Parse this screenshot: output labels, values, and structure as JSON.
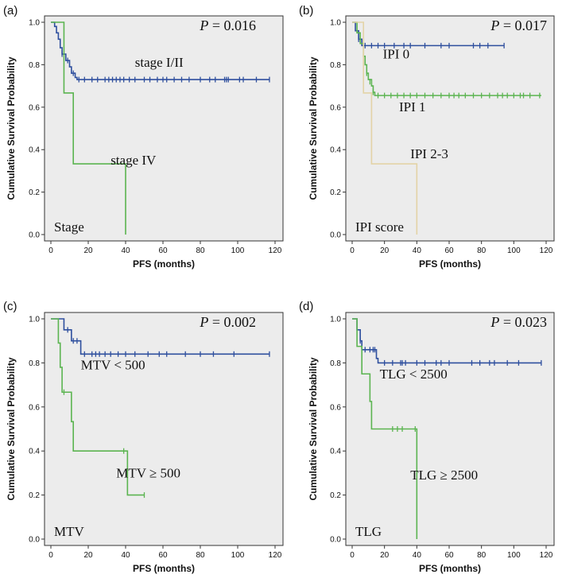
{
  "chart_data": [
    {
      "type": "line",
      "panel_label": "(a)",
      "title": "",
      "p_value_prefix": "P",
      "p_value_text": " = 0.016",
      "group_title": "Stage",
      "xlabel": "PFS (months)",
      "ylabel": "Cumulative Survival Probability",
      "xlim": [
        0,
        120
      ],
      "ylim": [
        0,
        1.0
      ],
      "x_ticks": [
        "0",
        "20",
        "40",
        "60",
        "80",
        "100",
        "120"
      ],
      "y_ticks": [
        "0.0",
        "0.2",
        "0.4",
        "0.6",
        "0.8",
        "1.0"
      ],
      "series": [
        {
          "name": "stage I/II",
          "color": "#2E4F9E",
          "label_at": [
            45,
            0.79
          ],
          "steps": [
            [
              0,
              1.0
            ],
            [
              2,
              0.98
            ],
            [
              3,
              0.95
            ],
            [
              4,
              0.92
            ],
            [
              5,
              0.88
            ],
            [
              6,
              0.85
            ],
            [
              8,
              0.82
            ],
            [
              10,
              0.79
            ],
            [
              11,
              0.76
            ],
            [
              13,
              0.74
            ],
            [
              14,
              0.73
            ],
            [
              117,
              0.73
            ]
          ],
          "censored": [
            [
              6,
              0.85
            ],
            [
              9,
              0.82
            ],
            [
              12,
              0.76
            ],
            [
              15,
              0.73
            ],
            [
              18,
              0.73
            ],
            [
              22,
              0.73
            ],
            [
              25,
              0.73
            ],
            [
              29,
              0.73
            ],
            [
              31,
              0.73
            ],
            [
              33,
              0.73
            ],
            [
              35,
              0.73
            ],
            [
              37,
              0.73
            ],
            [
              39,
              0.73
            ],
            [
              42,
              0.73
            ],
            [
              45,
              0.73
            ],
            [
              50,
              0.73
            ],
            [
              53,
              0.73
            ],
            [
              57,
              0.73
            ],
            [
              60,
              0.73
            ],
            [
              62,
              0.73
            ],
            [
              66,
              0.73
            ],
            [
              70,
              0.73
            ],
            [
              74,
              0.73
            ],
            [
              80,
              0.73
            ],
            [
              85,
              0.73
            ],
            [
              88,
              0.73
            ],
            [
              93,
              0.73
            ],
            [
              94,
              0.73
            ],
            [
              95,
              0.73
            ],
            [
              101,
              0.73
            ],
            [
              103,
              0.73
            ],
            [
              110,
              0.73
            ],
            [
              117,
              0.73
            ]
          ]
        },
        {
          "name": "stage IV",
          "color": "#5BB450",
          "label_at": [
            32,
            0.33
          ],
          "steps": [
            [
              0,
              1.0
            ],
            [
              6,
              1.0
            ],
            [
              7,
              0.667
            ],
            [
              11,
              0.667
            ],
            [
              12,
              0.333
            ],
            [
              40,
              0.333
            ],
            [
              40,
              0.0
            ]
          ],
          "censored": []
        }
      ]
    },
    {
      "type": "line",
      "panel_label": "(b)",
      "title": "",
      "p_value_prefix": "P",
      "p_value_text": " = 0.017",
      "group_title": "IPI score",
      "xlabel": "PFS (months)",
      "ylabel": "Cumulative Survival Probability",
      "xlim": [
        0,
        120
      ],
      "ylim": [
        0,
        1.0
      ],
      "x_ticks": [
        "0",
        "20",
        "40",
        "60",
        "80",
        "100",
        "120"
      ],
      "y_ticks": [
        "0.0",
        "0.2",
        "0.4",
        "0.6",
        "0.8",
        "1.0"
      ],
      "series": [
        {
          "name": "IPI 0",
          "color": "#2E4F9E",
          "label_at": [
            19,
            0.83
          ],
          "steps": [
            [
              0,
              1.0
            ],
            [
              2,
              0.96
            ],
            [
              4,
              0.92
            ],
            [
              6,
              0.89
            ],
            [
              94,
              0.89
            ]
          ],
          "censored": [
            [
              4,
              0.92
            ],
            [
              8,
              0.89
            ],
            [
              12,
              0.89
            ],
            [
              16,
              0.89
            ],
            [
              20,
              0.89
            ],
            [
              26,
              0.89
            ],
            [
              32,
              0.89
            ],
            [
              36,
              0.89
            ],
            [
              45,
              0.89
            ],
            [
              55,
              0.89
            ],
            [
              60,
              0.89
            ],
            [
              75,
              0.89
            ],
            [
              79,
              0.89
            ],
            [
              84,
              0.89
            ],
            [
              94,
              0.89
            ]
          ]
        },
        {
          "name": "IPI 1",
          "color": "#5BB450",
          "label_at": [
            29,
            0.58
          ],
          "steps": [
            [
              0,
              1.0
            ],
            [
              3,
              0.95
            ],
            [
              5,
              0.9
            ],
            [
              7,
              0.84
            ],
            [
              8,
              0.8
            ],
            [
              9,
              0.76
            ],
            [
              10,
              0.73
            ],
            [
              12,
              0.7
            ],
            [
              13,
              0.67
            ],
            [
              14,
              0.655
            ],
            [
              117,
              0.655
            ]
          ],
          "censored": [
            [
              9,
              0.76
            ],
            [
              11,
              0.72
            ],
            [
              13,
              0.67
            ],
            [
              16,
              0.655
            ],
            [
              20,
              0.655
            ],
            [
              24,
              0.655
            ],
            [
              28,
              0.655
            ],
            [
              32,
              0.655
            ],
            [
              36,
              0.655
            ],
            [
              40,
              0.655
            ],
            [
              45,
              0.655
            ],
            [
              50,
              0.655
            ],
            [
              55,
              0.655
            ],
            [
              60,
              0.655
            ],
            [
              63,
              0.655
            ],
            [
              66,
              0.655
            ],
            [
              70,
              0.655
            ],
            [
              75,
              0.655
            ],
            [
              80,
              0.655
            ],
            [
              85,
              0.655
            ],
            [
              90,
              0.655
            ],
            [
              93,
              0.655
            ],
            [
              96,
              0.655
            ],
            [
              100,
              0.655
            ],
            [
              104,
              0.655
            ],
            [
              106,
              0.655
            ],
            [
              110,
              0.655
            ],
            [
              116,
              0.655
            ]
          ]
        },
        {
          "name": "IPI 2-3",
          "color": "#E3D3A6",
          "label_at": [
            36,
            0.36
          ],
          "steps": [
            [
              0,
              1.0
            ],
            [
              6,
              1.0
            ],
            [
              7,
              0.667
            ],
            [
              11,
              0.667
            ],
            [
              12,
              0.333
            ],
            [
              40,
              0.333
            ],
            [
              40,
              0.0
            ]
          ],
          "censored": []
        }
      ]
    },
    {
      "type": "line",
      "panel_label": "(c)",
      "title": "",
      "p_value_prefix": "P",
      "p_value_text": " = 0.002",
      "group_title": "MTV",
      "xlabel": "PFS (months)",
      "ylabel": "Cumulative Survival Probability",
      "xlim": [
        0,
        120
      ],
      "ylim": [
        0,
        1.0
      ],
      "x_ticks": [
        "0",
        "20",
        "40",
        "60",
        "80",
        "100",
        "120"
      ],
      "y_ticks": [
        "0.0",
        "0.2",
        "0.4",
        "0.6",
        "0.8",
        "1.0"
      ],
      "series": [
        {
          "name": "MTV < 500",
          "color": "#2E4F9E",
          "label_at": [
            16,
            0.77
          ],
          "steps": [
            [
              0,
              1.0
            ],
            [
              6,
              1.0
            ],
            [
              7,
              0.95
            ],
            [
              11,
              0.9
            ],
            [
              15,
              0.9
            ],
            [
              16,
              0.84
            ],
            [
              117,
              0.84
            ]
          ],
          "censored": [
            [
              9,
              0.95
            ],
            [
              12,
              0.9
            ],
            [
              14,
              0.9
            ],
            [
              18,
              0.84
            ],
            [
              22,
              0.84
            ],
            [
              24,
              0.84
            ],
            [
              26,
              0.84
            ],
            [
              29,
              0.84
            ],
            [
              32,
              0.84
            ],
            [
              36,
              0.84
            ],
            [
              40,
              0.84
            ],
            [
              45,
              0.84
            ],
            [
              52,
              0.84
            ],
            [
              58,
              0.84
            ],
            [
              62,
              0.84
            ],
            [
              72,
              0.84
            ],
            [
              80,
              0.84
            ],
            [
              87,
              0.84
            ],
            [
              98,
              0.84
            ],
            [
              117,
              0.84
            ]
          ]
        },
        {
          "name": "MTV ≥ 500",
          "color": "#5BB450",
          "label_at": [
            35,
            0.28
          ],
          "steps": [
            [
              0,
              1.0
            ],
            [
              3,
              1.0
            ],
            [
              4,
              0.89
            ],
            [
              5,
              0.78
            ],
            [
              6,
              0.667
            ],
            [
              10,
              0.667
            ],
            [
              11,
              0.533
            ],
            [
              12,
              0.4
            ],
            [
              40,
              0.4
            ],
            [
              41,
              0.2
            ],
            [
              50,
              0.2
            ]
          ],
          "censored": [
            [
              7,
              0.667
            ],
            [
              39,
              0.4
            ],
            [
              50,
              0.2
            ]
          ]
        }
      ]
    },
    {
      "type": "line",
      "panel_label": "(d)",
      "title": "",
      "p_value_prefix": "P",
      "p_value_text": " = 0.023",
      "group_title": "TLG",
      "xlabel": "PFS (months)",
      "ylabel": "Cumulative Survival Probability",
      "xlim": [
        0,
        120
      ],
      "ylim": [
        0,
        1.0
      ],
      "x_ticks": [
        "0",
        "20",
        "40",
        "60",
        "80",
        "100",
        "120"
      ],
      "y_ticks": [
        "0.0",
        "0.2",
        "0.4",
        "0.6",
        "0.8",
        "1.0"
      ],
      "series": [
        {
          "name": "TLG < 2500",
          "color": "#2E4F9E",
          "label_at": [
            17,
            0.73
          ],
          "steps": [
            [
              0,
              1.0
            ],
            [
              3,
              0.95
            ],
            [
              5,
              0.9
            ],
            [
              6,
              0.86
            ],
            [
              14,
              0.86
            ],
            [
              15,
              0.82
            ],
            [
              16,
              0.8
            ],
            [
              117,
              0.8
            ]
          ],
          "censored": [
            [
              5,
              0.9
            ],
            [
              8,
              0.86
            ],
            [
              11,
              0.86
            ],
            [
              13,
              0.86
            ],
            [
              14,
              0.86
            ],
            [
              20,
              0.8
            ],
            [
              25,
              0.8
            ],
            [
              30,
              0.8
            ],
            [
              31,
              0.8
            ],
            [
              33,
              0.8
            ],
            [
              40,
              0.8
            ],
            [
              45,
              0.8
            ],
            [
              52,
              0.8
            ],
            [
              55,
              0.8
            ],
            [
              60,
              0.8
            ],
            [
              74,
              0.8
            ],
            [
              79,
              0.8
            ],
            [
              85,
              0.8
            ],
            [
              88,
              0.8
            ],
            [
              96,
              0.8
            ],
            [
              103,
              0.8
            ],
            [
              117,
              0.8
            ]
          ]
        },
        {
          "name": "TLG ≥ 2500",
          "color": "#5BB450",
          "label_at": [
            36,
            0.27
          ],
          "steps": [
            [
              0,
              1.0
            ],
            [
              2,
              1.0
            ],
            [
              3,
              0.875
            ],
            [
              6,
              0.75
            ],
            [
              10,
              0.75
            ],
            [
              11,
              0.625
            ],
            [
              12,
              0.5
            ],
            [
              40,
              0.5
            ],
            [
              40,
              0.0
            ]
          ],
          "censored": [
            [
              25,
              0.5
            ],
            [
              28,
              0.5
            ],
            [
              31,
              0.5
            ],
            [
              39,
              0.5
            ]
          ]
        }
      ]
    }
  ]
}
